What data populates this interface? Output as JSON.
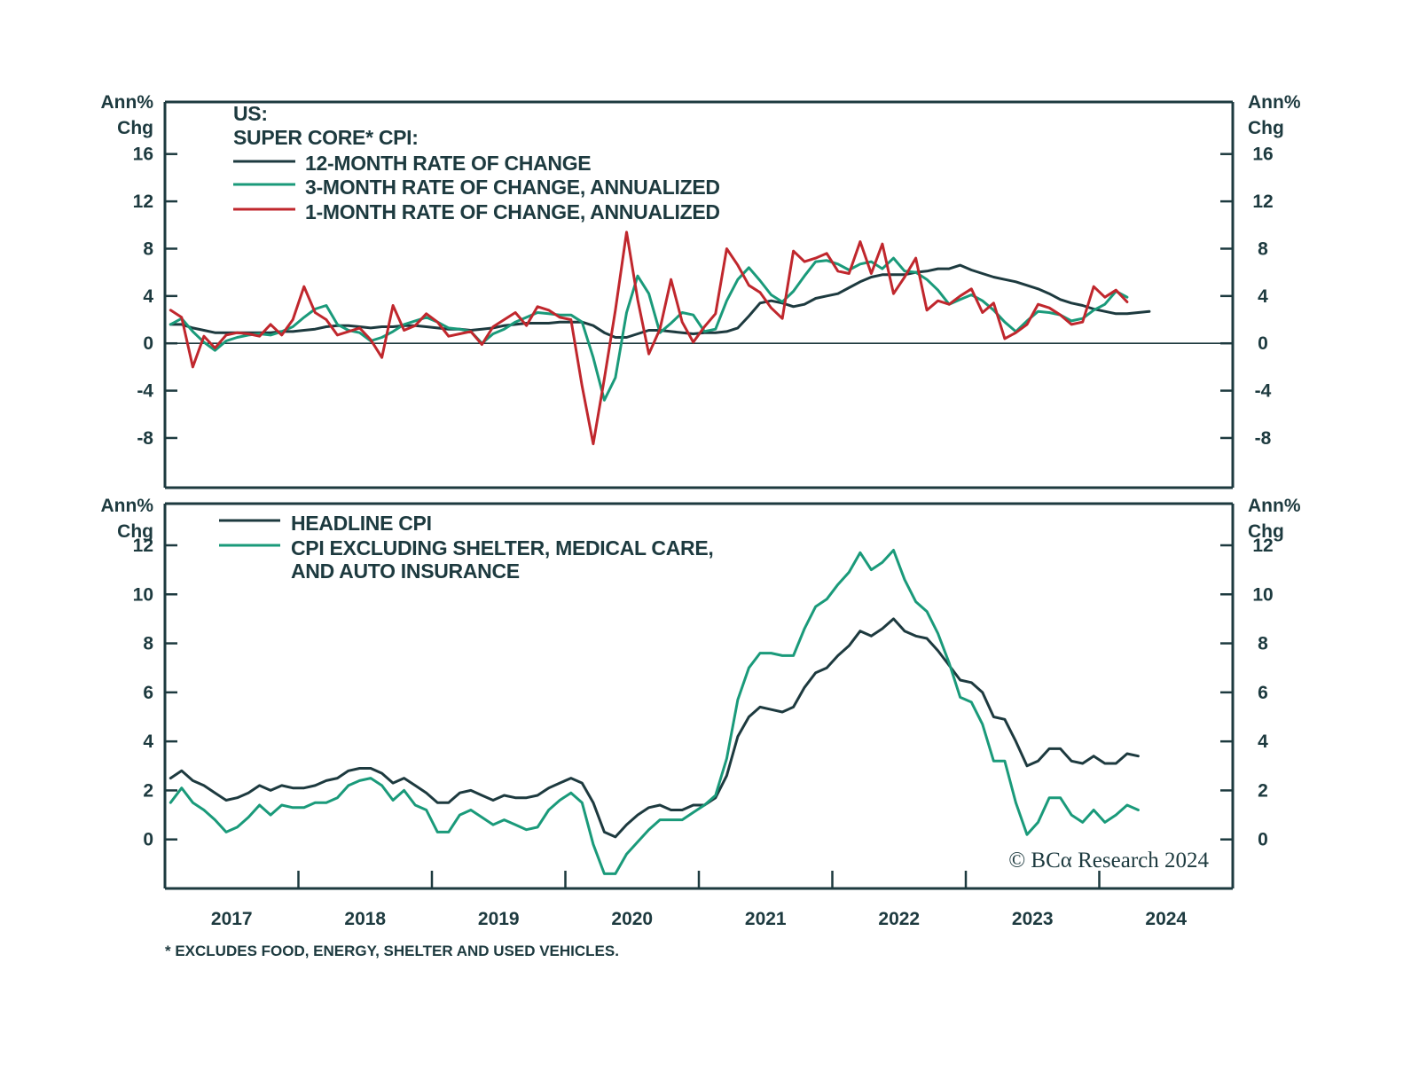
{
  "colors": {
    "frame": "#1d3a3f",
    "twelve_month": "#1d3a3f",
    "three_month": "#1a9a7a",
    "one_month": "#c0272d",
    "headline": "#1d3a3f",
    "ex_shelter": "#1a9a7a"
  },
  "chart_data": [
    {
      "type": "line",
      "title": "US: SUPER CORE* CPI:",
      "title_lines": [
        "US:",
        "SUPER CORE* CPI:"
      ],
      "ylabel": "Ann% Chg",
      "ylabel_lines": [
        "Ann%",
        "Chg"
      ],
      "ylim": [
        -12.2,
        20.4
      ],
      "yticks": [
        16,
        12,
        8,
        4,
        0,
        -4,
        -8
      ],
      "ytick_labels": [
        "16",
        "12",
        "8",
        "4",
        "0",
        "-4",
        "-8"
      ],
      "zero_line": true,
      "x_start": "2017-01",
      "x_frequency": "monthly",
      "legend_position": "top-left",
      "series": [
        {
          "name": "12-MONTH RATE OF CHANGE",
          "key": "twelve_month",
          "values": [
            1.6,
            1.6,
            1.3,
            1.1,
            0.9,
            0.9,
            0.9,
            0.9,
            0.9,
            0.9,
            1.0,
            1.0,
            1.1,
            1.2,
            1.4,
            1.5,
            1.5,
            1.4,
            1.3,
            1.4,
            1.4,
            1.5,
            1.5,
            1.4,
            1.3,
            1.2,
            1.2,
            1.1,
            1.2,
            1.3,
            1.5,
            1.6,
            1.7,
            1.7,
            1.7,
            1.8,
            1.8,
            1.8,
            1.5,
            0.9,
            0.5,
            0.5,
            0.8,
            1.1,
            1.1,
            1.0,
            0.9,
            0.8,
            0.9,
            0.9,
            1.0,
            1.3,
            2.3,
            3.4,
            3.6,
            3.4,
            3.1,
            3.3,
            3.8,
            4.0,
            4.2,
            4.7,
            5.2,
            5.6,
            5.8,
            5.8,
            5.8,
            6.0,
            6.1,
            6.3,
            6.3,
            6.6,
            6.2,
            5.9,
            5.6,
            5.4,
            5.2,
            4.9,
            4.6,
            4.2,
            3.7,
            3.4,
            3.2,
            2.9,
            2.7,
            2.5,
            2.5,
            2.6,
            2.7
          ]
        },
        {
          "name": "3-MONTH RATE OF CHANGE, ANNUALIZED",
          "key": "three_month",
          "values": [
            1.6,
            2.1,
            1.0,
            0.1,
            -0.6,
            0.2,
            0.5,
            0.7,
            0.8,
            0.7,
            1.0,
            1.4,
            2.2,
            2.9,
            3.2,
            1.6,
            1.1,
            0.9,
            0.2,
            0.5,
            1.0,
            1.6,
            1.9,
            2.2,
            1.8,
            1.3,
            1.2,
            1.0,
            0.0,
            0.8,
            1.2,
            1.8,
            2.2,
            2.6,
            2.5,
            2.4,
            2.4,
            1.8,
            -1.2,
            -4.8,
            -2.9,
            2.6,
            5.7,
            4.2,
            0.9,
            1.7,
            2.6,
            2.4,
            1.0,
            1.2,
            3.6,
            5.4,
            6.4,
            5.3,
            4.1,
            3.5,
            4.4,
            5.7,
            6.9,
            7.0,
            6.7,
            6.2,
            6.7,
            6.9,
            6.3,
            7.2,
            6.1,
            6.0,
            5.4,
            4.5,
            3.3,
            3.7,
            4.1,
            3.6,
            2.8,
            1.8,
            1.0,
            1.9,
            2.7,
            2.6,
            2.4,
            1.9,
            2.1,
            2.8,
            3.3,
            4.4,
            3.9
          ]
        },
        {
          "name": "1-MONTH RATE OF CHANGE, ANNUALIZED",
          "key": "one_month",
          "values": [
            2.8,
            2.2,
            -2.0,
            0.6,
            -0.4,
            0.7,
            0.9,
            0.8,
            0.6,
            1.6,
            0.7,
            2.0,
            4.8,
            2.6,
            2.0,
            0.7,
            1.0,
            1.3,
            0.3,
            -1.2,
            3.2,
            1.1,
            1.5,
            2.5,
            1.8,
            0.6,
            0.8,
            1.0,
            -0.1,
            1.4,
            2.0,
            2.6,
            1.5,
            3.1,
            2.8,
            2.2,
            2.0,
            -3.6,
            -8.5,
            -3.0,
            2.8,
            9.4,
            3.7,
            -0.9,
            1.2,
            5.4,
            1.8,
            0.1,
            1.4,
            2.5,
            8.0,
            6.6,
            4.9,
            4.3,
            3.0,
            2.1,
            7.8,
            6.9,
            7.2,
            7.6,
            6.1,
            5.9,
            8.6,
            5.9,
            8.4,
            4.2,
            5.6,
            7.2,
            2.8,
            3.6,
            3.3,
            4.0,
            4.6,
            2.6,
            3.4,
            0.4,
            0.9,
            1.6,
            3.3,
            3.0,
            2.4,
            1.6,
            1.8,
            4.8,
            3.9,
            4.5,
            3.5
          ]
        }
      ]
    },
    {
      "type": "line",
      "title": "",
      "ylabel": "Ann% Chg",
      "ylabel_lines": [
        "Ann%",
        "Chg"
      ],
      "ylim": [
        -2.0,
        13.7
      ],
      "yticks": [
        12,
        10,
        8,
        6,
        4,
        2,
        0
      ],
      "ytick_labels": [
        "12",
        "10",
        "8",
        "6",
        "4",
        "2",
        "0"
      ],
      "x_start": "2017-01",
      "x_frequency": "monthly",
      "legend_position": "top-left",
      "xticks": [
        "2017",
        "2018",
        "2019",
        "2020",
        "2021",
        "2022",
        "2023",
        "2024"
      ],
      "series": [
        {
          "name": "HEADLINE CPI",
          "key": "headline",
          "values": [
            2.5,
            2.8,
            2.4,
            2.2,
            1.9,
            1.6,
            1.7,
            1.9,
            2.2,
            2.0,
            2.2,
            2.1,
            2.1,
            2.2,
            2.4,
            2.5,
            2.8,
            2.9,
            2.9,
            2.7,
            2.3,
            2.5,
            2.2,
            1.9,
            1.5,
            1.5,
            1.9,
            2.0,
            1.8,
            1.6,
            1.8,
            1.7,
            1.7,
            1.8,
            2.1,
            2.3,
            2.5,
            2.3,
            1.5,
            0.3,
            0.1,
            0.6,
            1.0,
            1.3,
            1.4,
            1.2,
            1.2,
            1.4,
            1.4,
            1.7,
            2.6,
            4.2,
            5.0,
            5.4,
            5.3,
            5.2,
            5.4,
            6.2,
            6.8,
            7.0,
            7.5,
            7.9,
            8.5,
            8.3,
            8.6,
            9.0,
            8.5,
            8.3,
            8.2,
            7.7,
            7.1,
            6.5,
            6.4,
            6.0,
            5.0,
            4.9,
            4.0,
            3.0,
            3.2,
            3.7,
            3.7,
            3.2,
            3.1,
            3.4,
            3.1,
            3.1,
            3.5,
            3.4
          ]
        },
        {
          "name": "CPI EXCLUDING SHELTER, MEDICAL CARE, AND AUTO INSURANCE",
          "name_lines": [
            "CPI EXCLUDING SHELTER, MEDICAL CARE,",
            "AND AUTO INSURANCE"
          ],
          "key": "ex_shelter",
          "values": [
            1.5,
            2.1,
            1.5,
            1.2,
            0.8,
            0.3,
            0.5,
            0.9,
            1.4,
            1.0,
            1.4,
            1.3,
            1.3,
            1.5,
            1.5,
            1.7,
            2.2,
            2.4,
            2.5,
            2.2,
            1.6,
            2.0,
            1.4,
            1.2,
            0.3,
            0.3,
            1.0,
            1.2,
            0.9,
            0.6,
            0.8,
            0.6,
            0.4,
            0.5,
            1.2,
            1.6,
            1.9,
            1.5,
            -0.2,
            -1.4,
            -1.4,
            -0.6,
            -0.1,
            0.4,
            0.8,
            0.8,
            0.8,
            1.1,
            1.4,
            1.8,
            3.3,
            5.7,
            7.0,
            7.6,
            7.6,
            7.5,
            7.5,
            8.6,
            9.5,
            9.8,
            10.4,
            10.9,
            11.7,
            11.0,
            11.3,
            11.8,
            10.6,
            9.7,
            9.3,
            8.4,
            7.2,
            5.8,
            5.6,
            4.7,
            3.2,
            3.2,
            1.5,
            0.2,
            0.7,
            1.7,
            1.7,
            1.0,
            0.7,
            1.2,
            0.7,
            1.0,
            1.4,
            1.2
          ]
        }
      ]
    }
  ],
  "x_axis": {
    "start_year": 2017,
    "end_year": 2025,
    "year_labels": [
      "2017",
      "2018",
      "2019",
      "2020",
      "2021",
      "2022",
      "2023",
      "2024"
    ]
  },
  "footnote": "* EXCLUDES FOOD, ENERGY, SHELTER AND USED VEHICLES.",
  "copyright": "© BCα Research 2024"
}
